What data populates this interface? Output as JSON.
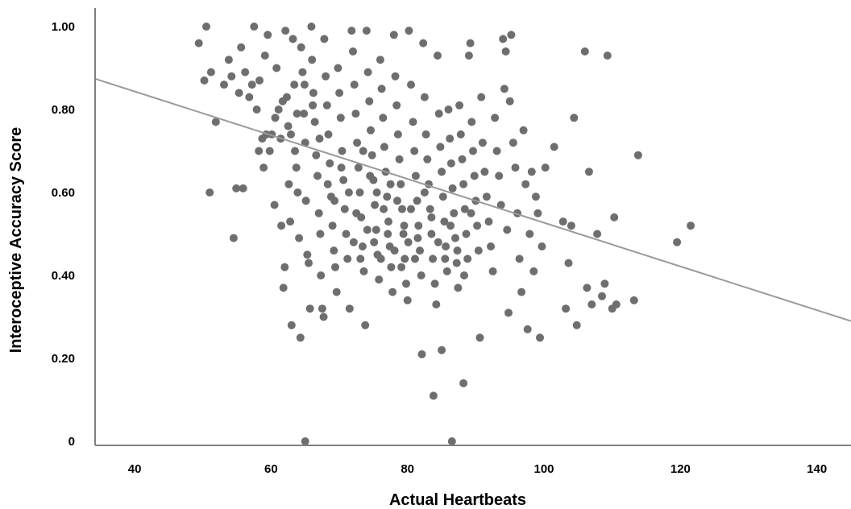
{
  "chart_data": {
    "type": "scatter",
    "title": "",
    "xlabel": "Actual Heartbeats",
    "ylabel": "Interoceptive Accuracy Score",
    "xlim": [
      35,
      145
    ],
    "ylim": [
      0,
      1.03
    ],
    "x_ticks": [
      {
        "value": 40,
        "label": "40"
      },
      {
        "value": 60,
        "label": "60"
      },
      {
        "value": 80,
        "label": "80"
      },
      {
        "value": 100,
        "label": "100"
      },
      {
        "value": 120,
        "label": "120"
      },
      {
        "value": 140,
        "label": "140"
      }
    ],
    "y_ticks": [
      {
        "value": 0,
        "label": "0"
      },
      {
        "value": 0.2,
        "label": "0.20"
      },
      {
        "value": 0.4,
        "label": "0.40"
      },
      {
        "value": 0.6,
        "label": "0.60"
      },
      {
        "value": 0.8,
        "label": "0.80"
      },
      {
        "value": 1.0,
        "label": "1.00"
      }
    ],
    "grid": false,
    "legend": "none",
    "trendline": {
      "x": [
        35,
        145
      ],
      "y": [
        0.87,
        0.29
      ]
    },
    "point_color": "#6e6e6e",
    "trendline_color": "#9a9a9a",
    "points": [
      [
        49.4,
        0.96
      ],
      [
        50.2,
        0.87
      ],
      [
        50.5,
        1.0
      ],
      [
        51.2,
        0.89
      ],
      [
        51.0,
        0.6
      ],
      [
        51.9,
        0.77
      ],
      [
        53.1,
        0.86
      ],
      [
        53.8,
        0.92
      ],
      [
        54.2,
        0.88
      ],
      [
        54.5,
        0.49
      ],
      [
        54.9,
        0.61
      ],
      [
        55.3,
        0.84
      ],
      [
        55.6,
        0.95
      ],
      [
        55.9,
        0.61
      ],
      [
        56.2,
        0.89
      ],
      [
        56.8,
        0.83
      ],
      [
        57.2,
        0.86
      ],
      [
        57.5,
        1.0
      ],
      [
        57.9,
        0.8
      ],
      [
        58.3,
        0.87
      ],
      [
        58.7,
        0.73
      ],
      [
        58.9,
        0.66
      ],
      [
        59.1,
        0.93
      ],
      [
        59.5,
        0.98
      ],
      [
        59.8,
        0.7
      ],
      [
        60.1,
        0.74
      ],
      [
        60.5,
        0.57
      ],
      [
        60.8,
        0.9
      ],
      [
        61.1,
        0.8
      ],
      [
        61.4,
        0.73
      ],
      [
        61.5,
        0.52
      ],
      [
        61.8,
        0.37
      ],
      [
        62.0,
        0.42
      ],
      [
        62.1,
        0.99
      ],
      [
        62.3,
        0.83
      ],
      [
        62.5,
        0.76
      ],
      [
        62.6,
        0.62
      ],
      [
        62.8,
        0.53
      ],
      [
        63.0,
        0.28
      ],
      [
        63.2,
        0.97
      ],
      [
        63.4,
        0.86
      ],
      [
        63.5,
        0.7
      ],
      [
        63.7,
        0.66
      ],
      [
        63.9,
        0.6
      ],
      [
        64.1,
        0.49
      ],
      [
        64.3,
        0.25
      ],
      [
        64.4,
        0.95
      ],
      [
        64.6,
        0.89
      ],
      [
        64.8,
        0.79
      ],
      [
        65.0,
        0.72
      ],
      [
        65.0,
        0.0
      ],
      [
        65.1,
        0.58
      ],
      [
        65.3,
        0.45
      ],
      [
        65.5,
        0.43
      ],
      [
        65.7,
        0.32
      ],
      [
        65.9,
        1.0
      ],
      [
        66.0,
        0.92
      ],
      [
        66.2,
        0.84
      ],
      [
        66.4,
        0.77
      ],
      [
        66.6,
        0.69
      ],
      [
        66.8,
        0.64
      ],
      [
        67.0,
        0.55
      ],
      [
        67.2,
        0.5
      ],
      [
        67.3,
        0.4
      ],
      [
        67.5,
        0.32
      ],
      [
        67.7,
        0.3
      ],
      [
        67.8,
        0.97
      ],
      [
        68.0,
        0.88
      ],
      [
        68.2,
        0.81
      ],
      [
        68.4,
        0.74
      ],
      [
        68.6,
        0.67
      ],
      [
        68.8,
        0.59
      ],
      [
        69.0,
        0.52
      ],
      [
        69.2,
        0.46
      ],
      [
        69.4,
        0.42
      ],
      [
        69.6,
        0.36
      ],
      [
        69.8,
        0.9
      ],
      [
        70.0,
        0.84
      ],
      [
        70.2,
        0.78
      ],
      [
        70.4,
        0.7
      ],
      [
        70.6,
        0.63
      ],
      [
        70.8,
        0.56
      ],
      [
        71.0,
        0.5
      ],
      [
        71.2,
        0.44
      ],
      [
        71.5,
        0.32
      ],
      [
        71.8,
        0.99
      ],
      [
        72.0,
        0.94
      ],
      [
        72.2,
        0.86
      ],
      [
        72.4,
        0.79
      ],
      [
        72.6,
        0.72
      ],
      [
        72.8,
        0.66
      ],
      [
        73.0,
        0.6
      ],
      [
        73.2,
        0.54
      ],
      [
        73.4,
        0.47
      ],
      [
        73.6,
        0.41
      ],
      [
        73.8,
        0.28
      ],
      [
        74.0,
        0.99
      ],
      [
        74.2,
        0.89
      ],
      [
        74.4,
        0.82
      ],
      [
        74.6,
        0.75
      ],
      [
        74.8,
        0.69
      ],
      [
        75.0,
        0.63
      ],
      [
        75.2,
        0.57
      ],
      [
        75.4,
        0.51
      ],
      [
        75.6,
        0.45
      ],
      [
        75.8,
        0.39
      ],
      [
        76.0,
        0.92
      ],
      [
        76.2,
        0.85
      ],
      [
        76.4,
        0.78
      ],
      [
        76.6,
        0.71
      ],
      [
        76.8,
        0.65
      ],
      [
        77.0,
        0.59
      ],
      [
        77.2,
        0.53
      ],
      [
        77.4,
        0.47
      ],
      [
        77.6,
        0.42
      ],
      [
        77.8,
        0.36
      ],
      [
        78.0,
        0.98
      ],
      [
        78.2,
        0.88
      ],
      [
        78.4,
        0.81
      ],
      [
        78.6,
        0.74
      ],
      [
        78.8,
        0.68
      ],
      [
        79.0,
        0.62
      ],
      [
        79.2,
        0.56
      ],
      [
        79.4,
        0.5
      ],
      [
        79.6,
        0.44
      ],
      [
        79.8,
        0.38
      ],
      [
        80.0,
        0.34
      ],
      [
        80.2,
        0.99
      ],
      [
        80.5,
        0.86
      ],
      [
        80.8,
        0.77
      ],
      [
        81.0,
        0.7
      ],
      [
        81.2,
        0.64
      ],
      [
        81.4,
        0.58
      ],
      [
        81.6,
        0.52
      ],
      [
        81.8,
        0.46
      ],
      [
        82.0,
        0.4
      ],
      [
        82.1,
        0.21
      ],
      [
        82.3,
        0.96
      ],
      [
        82.5,
        0.83
      ],
      [
        82.7,
        0.74
      ],
      [
        82.9,
        0.68
      ],
      [
        83.1,
        0.62
      ],
      [
        83.3,
        0.56
      ],
      [
        83.5,
        0.5
      ],
      [
        83.7,
        0.44
      ],
      [
        83.8,
        0.11
      ],
      [
        84.0,
        0.38
      ],
      [
        84.2,
        0.33
      ],
      [
        84.4,
        0.93
      ],
      [
        84.6,
        0.79
      ],
      [
        84.8,
        0.71
      ],
      [
        85.0,
        0.65
      ],
      [
        85.2,
        0.59
      ],
      [
        85.4,
        0.53
      ],
      [
        85.6,
        0.47
      ],
      [
        85.8,
        0.41
      ],
      [
        85.0,
        0.22
      ],
      [
        86.0,
        0.8
      ],
      [
        86.2,
        0.73
      ],
      [
        86.4,
        0.67
      ],
      [
        86.6,
        0.61
      ],
      [
        86.5,
        0.0
      ],
      [
        86.8,
        0.55
      ],
      [
        87.0,
        0.49
      ],
      [
        87.2,
        0.43
      ],
      [
        87.4,
        0.37
      ],
      [
        87.6,
        0.81
      ],
      [
        87.8,
        0.74
      ],
      [
        88.0,
        0.68
      ],
      [
        88.2,
        0.62
      ],
      [
        88.2,
        0.14
      ],
      [
        88.4,
        0.56
      ],
      [
        88.6,
        0.5
      ],
      [
        88.8,
        0.44
      ],
      [
        89.0,
        0.93
      ],
      [
        89.2,
        0.96
      ],
      [
        89.4,
        0.77
      ],
      [
        89.6,
        0.7
      ],
      [
        89.8,
        0.64
      ],
      [
        90.0,
        0.58
      ],
      [
        90.2,
        0.52
      ],
      [
        90.4,
        0.46
      ],
      [
        90.6,
        0.25
      ],
      [
        90.8,
        0.83
      ],
      [
        91.0,
        0.72
      ],
      [
        91.3,
        0.65
      ],
      [
        91.6,
        0.59
      ],
      [
        91.9,
        0.53
      ],
      [
        92.2,
        0.47
      ],
      [
        92.5,
        0.41
      ],
      [
        92.8,
        0.78
      ],
      [
        93.1,
        0.7
      ],
      [
        93.4,
        0.64
      ],
      [
        93.7,
        0.57
      ],
      [
        94.0,
        0.97
      ],
      [
        94.2,
        0.85
      ],
      [
        94.4,
        0.94
      ],
      [
        94.6,
        0.51
      ],
      [
        94.8,
        0.31
      ],
      [
        95.0,
        0.82
      ],
      [
        95.2,
        0.98
      ],
      [
        95.5,
        0.72
      ],
      [
        95.8,
        0.66
      ],
      [
        96.1,
        0.55
      ],
      [
        96.4,
        0.44
      ],
      [
        96.7,
        0.36
      ],
      [
        97.0,
        0.75
      ],
      [
        97.3,
        0.62
      ],
      [
        97.6,
        0.27
      ],
      [
        97.9,
        0.5
      ],
      [
        98.2,
        0.65
      ],
      [
        98.5,
        0.41
      ],
      [
        98.8,
        0.59
      ],
      [
        99.1,
        0.55
      ],
      [
        99.4,
        0.25
      ],
      [
        99.7,
        0.47
      ],
      [
        100.2,
        0.66
      ],
      [
        101.5,
        0.71
      ],
      [
        102.8,
        0.53
      ],
      [
        103.2,
        0.32
      ],
      [
        103.6,
        0.43
      ],
      [
        104.0,
        0.52
      ],
      [
        104.4,
        0.78
      ],
      [
        104.8,
        0.28
      ],
      [
        106.0,
        0.94
      ],
      [
        106.3,
        0.37
      ],
      [
        106.6,
        0.65
      ],
      [
        107.0,
        0.33
      ],
      [
        107.8,
        0.5
      ],
      [
        108.5,
        0.35
      ],
      [
        108.9,
        0.38
      ],
      [
        109.3,
        0.93
      ],
      [
        110.0,
        0.32
      ],
      [
        110.3,
        0.54
      ],
      [
        110.6,
        0.33
      ],
      [
        113.2,
        0.34
      ],
      [
        113.8,
        0.69
      ],
      [
        119.5,
        0.48
      ],
      [
        121.5,
        0.52
      ],
      [
        58.2,
        0.7
      ],
      [
        59.3,
        0.74
      ],
      [
        60.6,
        0.78
      ],
      [
        61.7,
        0.82
      ],
      [
        62.9,
        0.74
      ],
      [
        63.8,
        0.79
      ],
      [
        64.9,
        0.86
      ],
      [
        66.1,
        0.81
      ],
      [
        67.1,
        0.73
      ],
      [
        68.3,
        0.62
      ],
      [
        69.3,
        0.58
      ],
      [
        70.3,
        0.66
      ],
      [
        71.4,
        0.6
      ],
      [
        72.5,
        0.55
      ],
      [
        73.5,
        0.7
      ],
      [
        74.5,
        0.64
      ],
      [
        75.5,
        0.6
      ],
      [
        76.5,
        0.56
      ],
      [
        77.5,
        0.62
      ],
      [
        78.5,
        0.58
      ],
      [
        79.5,
        0.52
      ],
      [
        80.5,
        0.56
      ],
      [
        81.5,
        0.49
      ],
      [
        82.5,
        0.6
      ],
      [
        83.5,
        0.54
      ],
      [
        84.5,
        0.48
      ],
      [
        85.5,
        0.44
      ],
      [
        86.3,
        0.52
      ],
      [
        87.3,
        0.46
      ],
      [
        88.3,
        0.4
      ],
      [
        89.3,
        0.55
      ],
      [
        72.1,
        0.48
      ],
      [
        73.1,
        0.44
      ],
      [
        74.1,
        0.51
      ],
      [
        75.1,
        0.48
      ],
      [
        76.1,
        0.44
      ],
      [
        77.1,
        0.5
      ],
      [
        78.1,
        0.46
      ],
      [
        79.1,
        0.42
      ],
      [
        80.1,
        0.48
      ],
      [
        81.1,
        0.44
      ]
    ]
  }
}
